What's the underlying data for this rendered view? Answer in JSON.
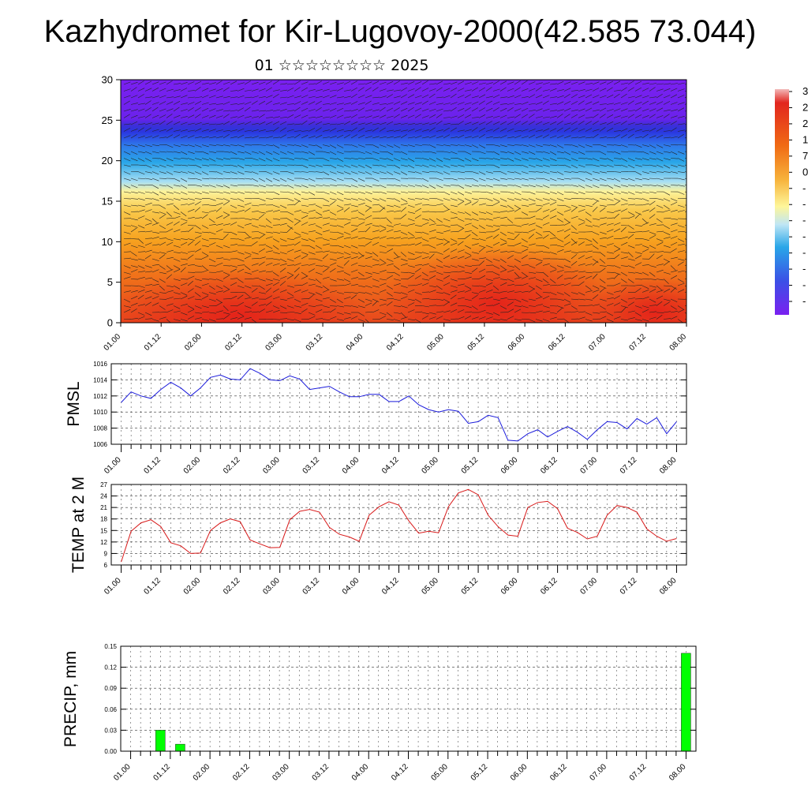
{
  "title": "Kazhydromet for Kir-Lugovoy-2000(42.585 73.044)",
  "subtitle": "01 ☆☆☆☆☆☆☆☆ 2025",
  "time_ticks": [
    "01.00",
    "01.12",
    "02.00",
    "02.12",
    "03.00",
    "03.12",
    "04.00",
    "04.12",
    "05.00",
    "05.12",
    "06.00",
    "06.12",
    "07.00",
    "07.12",
    "08.00"
  ],
  "colors": {
    "pmsl_line": "#1a1adb",
    "temp_line": "#d81818",
    "precip_bar": "#00ff00",
    "grid": "#333333"
  },
  "chart_data": [
    {
      "type": "heatmap",
      "title": "",
      "xlabel": "",
      "ylabel": "",
      "x_ticks": [
        "01.00",
        "01.12",
        "02.00",
        "02.12",
        "03.00",
        "03.12",
        "04.00",
        "04.12",
        "05.00",
        "05.12",
        "06.00",
        "06.12",
        "07.00",
        "07.12",
        "08.00"
      ],
      "y_ticks": [
        "0",
        "5",
        "10",
        "15",
        "20",
        "25",
        "30"
      ],
      "ylim": [
        0,
        30
      ],
      "colorbar_labels_visible": [
        "3",
        "2",
        "2",
        "1",
        "7",
        "0",
        "-",
        "-",
        "-",
        "-",
        "-",
        "-",
        "-",
        "-"
      ],
      "colormap": [
        "#f2b8b8",
        "#e2261f",
        "#f06a14",
        "#f7b23a",
        "#fef69a",
        "#bfe6f5",
        "#29a6e8",
        "#3b50e6",
        "#7a20f0"
      ],
      "overlay": "wind barbs"
    },
    {
      "type": "line",
      "ylabel": "PMSL",
      "ylim": [
        1006,
        1016
      ],
      "y_ticks": [
        "1006",
        "1008",
        "1010",
        "1012",
        "1014",
        "1016"
      ],
      "x_ticks": [
        "01.00",
        "01.12",
        "02.00",
        "02.12",
        "03.00",
        "03.12",
        "04.00",
        "04.12",
        "05.00",
        "05.12",
        "06.00",
        "06.12",
        "07.00",
        "07.12",
        "08.00"
      ],
      "x_range_hours": [
        -3,
        171
      ],
      "series": [
        {
          "x_hours": [
            0,
            3,
            6,
            9,
            12,
            15,
            18,
            21,
            24,
            27,
            30,
            33,
            36,
            39,
            42,
            45,
            48,
            51,
            54,
            57,
            60,
            63,
            66,
            69,
            72,
            75,
            78,
            81,
            84,
            87,
            90,
            93,
            96,
            99,
            102,
            105,
            108,
            111,
            114,
            117,
            120,
            123,
            126,
            129,
            132,
            135,
            138,
            141,
            144,
            147,
            150,
            153,
            156,
            159,
            162,
            165,
            168
          ],
          "values": [
            1011.2,
            1012.5,
            1012.0,
            1011.7,
            1012.8,
            1013.7,
            1013.0,
            1012.0,
            1013.0,
            1014.3,
            1014.6,
            1014.1,
            1014.0,
            1015.4,
            1014.8,
            1014.0,
            1013.9,
            1014.5,
            1014.1,
            1012.8,
            1013.0,
            1013.2,
            1012.5,
            1011.9,
            1011.9,
            1012.2,
            1012.2,
            1011.3,
            1011.3,
            1012.0,
            1010.9,
            1010.3,
            1010.0,
            1010.3,
            1010.1,
            1008.6,
            1008.8,
            1009.6,
            1009.3,
            1006.5,
            1006.4,
            1007.3,
            1007.8,
            1006.9,
            1007.6,
            1008.2,
            1007.5,
            1006.6,
            1007.8,
            1008.8,
            1008.7,
            1007.9,
            1009.2,
            1008.5,
            1009.3,
            1007.3,
            1008.8
          ]
        }
      ]
    },
    {
      "type": "line",
      "ylabel": "TEMP at 2 M",
      "ylim": [
        6,
        27
      ],
      "y_ticks": [
        "6",
        "9",
        "12",
        "15",
        "18",
        "21",
        "24",
        "27"
      ],
      "x_ticks": [
        "01.00",
        "01.12",
        "02.00",
        "02.12",
        "03.00",
        "03.12",
        "04.00",
        "04.12",
        "05.00",
        "05.12",
        "06.00",
        "06.12",
        "07.00",
        "07.12",
        "08.00"
      ],
      "x_range_hours": [
        -3,
        171
      ],
      "series": [
        {
          "x_hours": [
            0,
            3,
            6,
            9,
            12,
            15,
            18,
            21,
            24,
            27,
            30,
            33,
            36,
            39,
            42,
            45,
            48,
            51,
            54,
            57,
            60,
            63,
            66,
            69,
            72,
            75,
            78,
            81,
            84,
            87,
            90,
            93,
            96,
            99,
            102,
            105,
            108,
            111,
            114,
            117,
            120,
            123,
            126,
            129,
            132,
            135,
            138,
            141,
            144,
            147,
            150,
            153,
            156,
            159,
            162,
            165,
            168
          ],
          "values": [
            6.8,
            14.8,
            17.0,
            17.8,
            16.0,
            11.8,
            11.0,
            9.0,
            9.1,
            15.0,
            17.0,
            18.0,
            17.3,
            12.5,
            11.5,
            10.5,
            10.6,
            17.8,
            20.0,
            20.5,
            19.8,
            15.8,
            14.0,
            13.3,
            12.2,
            19.0,
            21.2,
            22.5,
            21.6,
            17.5,
            14.3,
            14.8,
            14.4,
            21.2,
            24.8,
            25.7,
            24.3,
            19.0,
            16.0,
            13.8,
            13.5,
            21.0,
            22.3,
            22.6,
            20.7,
            15.6,
            14.5,
            12.8,
            13.5,
            19.0,
            21.5,
            21.0,
            19.8,
            15.4,
            13.5,
            12.2,
            12.9
          ]
        }
      ]
    },
    {
      "type": "bar",
      "ylabel": "PRECIP, mm",
      "ylim": [
        0,
        0.15
      ],
      "y_ticks": [
        "0.00",
        "0.03",
        "0.06",
        "0.09",
        "0.12",
        "0.15"
      ],
      "x_ticks": [
        "01.00",
        "01.12",
        "02.00",
        "02.12",
        "03.00",
        "03.12",
        "04.00",
        "04.12",
        "05.00",
        "05.12",
        "06.00",
        "06.12",
        "07.00",
        "07.12",
        "08.00"
      ],
      "x_range_hours": [
        -3,
        171
      ],
      "series": [
        {
          "x_hours": [
            9,
            15,
            168
          ],
          "values": [
            0.03,
            0.01,
            0.14
          ]
        }
      ]
    }
  ]
}
